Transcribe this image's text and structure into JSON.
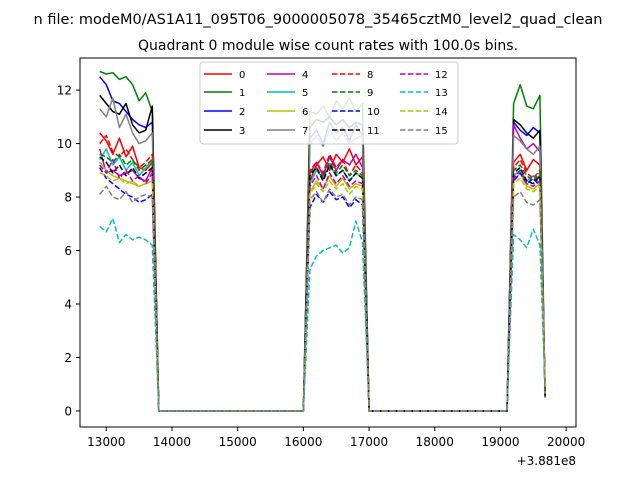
{
  "figure": {
    "suptitle": "n file: modeM0/AS1A11_095T06_9000005078_35465cztM0_level2_quad_clean",
    "offset_label": "+3.881e8"
  },
  "chart_data": {
    "type": "line",
    "title": "Quadrant 0 module wise count rates with 100.0s bins.",
    "xlabel": "",
    "ylabel": "",
    "xlim": [
      12600,
      20150
    ],
    "ylim": [
      -0.6,
      13.2
    ],
    "x_offset": 388100000,
    "xticks": [
      13000,
      14000,
      15000,
      16000,
      17000,
      18000,
      19000,
      20000
    ],
    "yticks": [
      0,
      2,
      4,
      6,
      8,
      10,
      12
    ],
    "grid": false,
    "legend": {
      "placement": "upper center",
      "ncol": 4
    },
    "segments": [
      {
        "x": [
          12900,
          13000,
          13100,
          13200,
          13300,
          13400,
          13500,
          13600,
          13700
        ]
      },
      {
        "x": [
          16100,
          16200,
          16300,
          16400,
          16500,
          16600,
          16700,
          16800,
          16900
        ]
      },
      {
        "x": [
          19200,
          19300,
          19400,
          19500,
          19600
        ]
      }
    ],
    "gaps": [
      {
        "x": [
          13700,
          13800,
          13900,
          14000,
          16000,
          16100
        ]
      },
      {
        "x": [
          16900,
          17000,
          17100,
          19100,
          19200
        ]
      },
      {
        "x": [
          19600,
          19680
        ]
      }
    ],
    "series": [
      {
        "name": "0",
        "color": "#ff0000",
        "dash": "solid",
        "values": [
          [
            10.4,
            10.1,
            9.6,
            10.2,
            9.5,
            9.9,
            9.1,
            9.0,
            9.3
          ],
          [
            8.6,
            9.2,
            9.5,
            9.0,
            9.6,
            9.3,
            9.8,
            9.2,
            9.5
          ],
          [
            9.3,
            9.6,
            9.0,
            9.4,
            9.2
          ]
        ]
      },
      {
        "name": "1",
        "color": "#008000",
        "dash": "solid",
        "values": [
          [
            12.7,
            12.6,
            12.65,
            12.4,
            12.5,
            12.2,
            11.6,
            11.9,
            11.2
          ],
          [
            11.2,
            11.1,
            11.4,
            11.0,
            11.6,
            11.3,
            11.7,
            11.2,
            11.5
          ],
          [
            11.5,
            12.2,
            11.4,
            11.3,
            11.8
          ]
        ]
      },
      {
        "name": "2",
        "color": "#0000ff",
        "dash": "solid",
        "values": [
          [
            12.5,
            12.2,
            11.6,
            11.5,
            11.2,
            10.9,
            10.7,
            10.6,
            10.8
          ],
          [
            10.2,
            10.5,
            10.0,
            10.8,
            10.4,
            10.6,
            10.1,
            10.7,
            10.3
          ],
          [
            10.8,
            10.5,
            10.3,
            10.6,
            10.4
          ]
        ]
      },
      {
        "name": "3",
        "color": "#000000",
        "dash": "solid",
        "values": [
          [
            11.8,
            11.5,
            11.2,
            11.1,
            11.5,
            10.7,
            10.4,
            10.5,
            11.4
          ],
          [
            10.6,
            10.9,
            10.8,
            11.0,
            10.7,
            10.9,
            10.6,
            10.8,
            10.7
          ],
          [
            10.9,
            10.7,
            10.4,
            10.2,
            10.5
          ]
        ]
      },
      {
        "name": "4",
        "color": "#bf00bf",
        "dash": "solid",
        "values": [
          [
            9.8,
            8.9,
            9.0,
            8.8,
            8.9,
            9.0,
            8.7,
            8.6,
            9.1
          ],
          [
            8.9,
            9.3,
            8.8,
            9.5,
            9.0,
            9.4,
            9.2,
            9.6,
            9.1
          ],
          [
            10.7,
            10.2,
            9.8,
            10.0,
            9.7
          ]
        ]
      },
      {
        "name": "5",
        "color": "#00bfbf",
        "dash": "solid",
        "values": [
          [
            9.4,
            9.8,
            9.2,
            9.5,
            9.0,
            9.3,
            8.8,
            9.1,
            9.4
          ],
          [
            8.5,
            9.0,
            8.7,
            9.2,
            8.8,
            9.0,
            8.6,
            8.9,
            8.7
          ],
          [
            8.8,
            9.0,
            8.6,
            8.8,
            8.5
          ]
        ]
      },
      {
        "name": "6",
        "color": "#bfbf00",
        "dash": "solid",
        "values": [
          [
            9.3,
            9.0,
            8.8,
            8.7,
            8.6,
            8.5,
            8.4,
            8.5,
            8.6
          ],
          [
            8.2,
            8.6,
            8.3,
            8.8,
            8.4,
            8.7,
            8.3,
            8.5,
            8.4
          ],
          [
            8.6,
            8.9,
            8.4,
            8.3,
            8.5
          ]
        ]
      },
      {
        "name": "7",
        "color": "#808080",
        "dash": "solid",
        "values": [
          [
            11.3,
            11.0,
            11.7,
            10.6,
            11.1,
            10.4,
            10.0,
            10.1,
            10.4
          ],
          [
            10.0,
            10.3,
            9.9,
            10.5,
            10.1,
            10.4,
            10.0,
            10.2,
            10.3
          ],
          [
            10.3,
            10.1,
            9.8,
            9.6,
            9.9
          ]
        ]
      },
      {
        "name": "8",
        "color": "#ff0000",
        "dash": "dashed",
        "values": [
          [
            10.0,
            10.3,
            9.7,
            9.5,
            9.8,
            9.4,
            9.1,
            9.3,
            9.6
          ],
          [
            9.0,
            9.3,
            8.9,
            9.6,
            9.1,
            9.4,
            8.8,
            9.2,
            8.9
          ],
          [
            9.1,
            9.4,
            8.9,
            8.7,
            9.0
          ]
        ]
      },
      {
        "name": "9",
        "color": "#008000",
        "dash": "dashed",
        "values": [
          [
            9.6,
            9.5,
            9.3,
            9.6,
            9.2,
            9.4,
            9.0,
            9.2,
            9.4
          ],
          [
            8.9,
            9.1,
            8.7,
            9.3,
            8.9,
            9.2,
            8.8,
            9.0,
            8.8
          ],
          [
            9.0,
            9.2,
            8.8,
            8.6,
            8.9
          ]
        ]
      },
      {
        "name": "10",
        "color": "#0000ff",
        "dash": "dashed",
        "values": [
          [
            9.1,
            8.7,
            8.5,
            8.3,
            8.1,
            8.0,
            7.8,
            7.9,
            8.1
          ],
          [
            7.6,
            8.1,
            7.8,
            8.2,
            7.9,
            8.0,
            7.6,
            7.9,
            7.7
          ],
          [
            8.6,
            8.9,
            8.5,
            8.7,
            8.4
          ]
        ]
      },
      {
        "name": "11",
        "color": "#000000",
        "dash": "dashed",
        "values": [
          [
            9.5,
            9.3,
            8.9,
            9.2,
            8.8,
            9.1,
            8.7,
            8.9,
            9.1
          ],
          [
            8.8,
            9.1,
            8.6,
            9.2,
            8.8,
            9.0,
            8.6,
            8.9,
            8.7
          ],
          [
            8.9,
            9.1,
            8.6,
            8.5,
            8.8
          ]
        ]
      },
      {
        "name": "12",
        "color": "#bf00bf",
        "dash": "dashed",
        "values": [
          [
            9.2,
            8.9,
            9.4,
            8.7,
            9.0,
            8.6,
            8.8,
            8.5,
            8.9
          ],
          [
            8.4,
            8.8,
            8.3,
            8.9,
            8.5,
            8.8,
            8.4,
            8.6,
            8.5
          ],
          [
            8.7,
            9.0,
            8.5,
            8.4,
            8.6
          ]
        ]
      },
      {
        "name": "13",
        "color": "#00bfbf",
        "dash": "dashed",
        "values": [
          [
            6.9,
            6.7,
            7.2,
            6.3,
            6.6,
            6.4,
            6.5,
            6.4,
            6.2
          ],
          [
            5.3,
            5.8,
            6.0,
            6.1,
            6.2,
            5.9,
            6.1,
            7.1,
            6.3
          ],
          [
            6.6,
            6.4,
            6.1,
            6.8,
            6.2
          ]
        ]
      },
      {
        "name": "14",
        "color": "#bfbf00",
        "dash": "dashed",
        "values": [
          [
            8.9,
            8.8,
            8.6,
            8.7,
            8.5,
            8.6,
            8.4,
            8.5,
            8.6
          ],
          [
            8.1,
            8.5,
            8.2,
            8.6,
            8.3,
            8.5,
            8.1,
            8.4,
            8.3
          ],
          [
            8.5,
            8.7,
            8.3,
            8.2,
            8.4
          ]
        ]
      },
      {
        "name": "15",
        "color": "#808080",
        "dash": "dashed",
        "values": [
          [
            8.1,
            8.4,
            8.0,
            7.9,
            8.2,
            7.8,
            8.0,
            8.1,
            8.0
          ],
          [
            7.9,
            8.2,
            7.8,
            8.3,
            8.0,
            8.1,
            7.7,
            8.0,
            7.9
          ],
          [
            8.0,
            8.2,
            7.8,
            7.7,
            7.9
          ]
        ]
      }
    ]
  }
}
